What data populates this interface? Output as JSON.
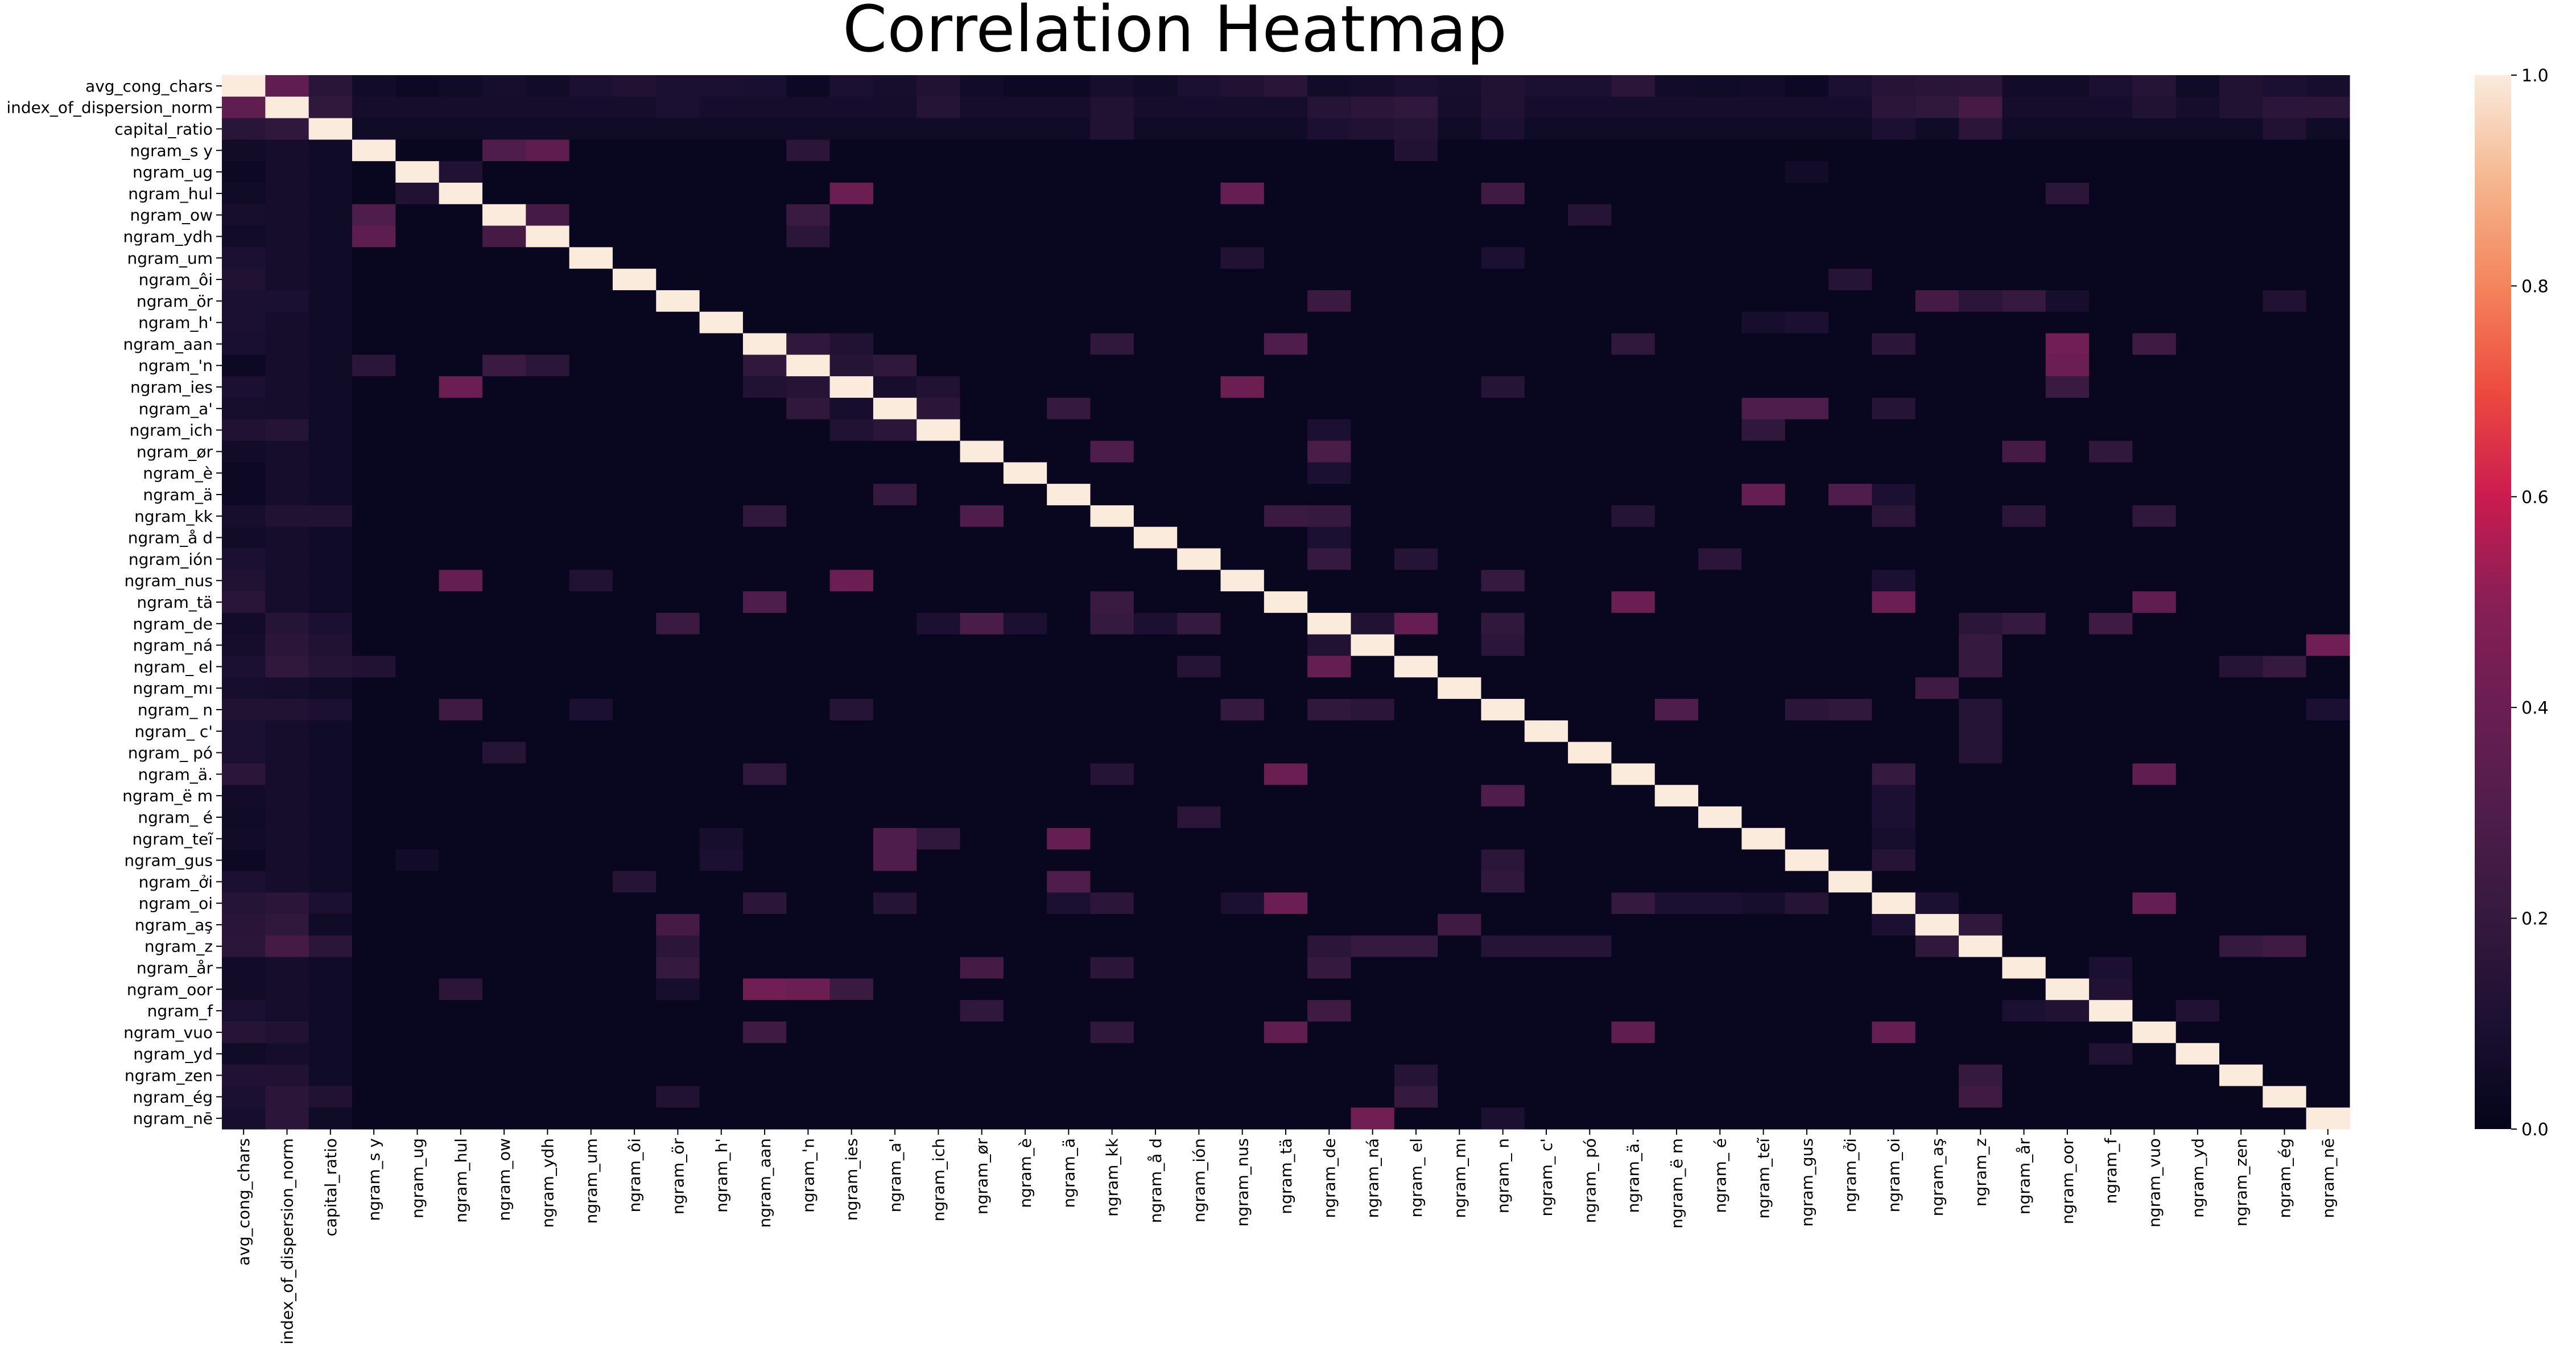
{
  "chart_data": {
    "type": "heatmap",
    "title": "Correlation Heatmap",
    "labels": [
      "avg_cong_chars",
      "index_of_dispersion_norm",
      "capital_ratio",
      "ngram_s y",
      "ngram_ug",
      "ngram_hul",
      "ngram_ow",
      "ngram_ydh",
      "ngram_um",
      "ngram_ôi",
      "ngram_ör",
      "ngram_h'",
      "ngram_aan",
      "ngram_'n",
      "ngram_ies",
      "ngram_a'",
      "ngram_ich",
      "ngram_ør",
      "ngram_è",
      "ngram_ä",
      "ngram_kk",
      "ngram_å d",
      "ngram_ión",
      "ngram_nus",
      "ngram_tä",
      "ngram_de",
      "ngram_ná",
      "ngram_ el",
      "ngram_mı",
      "ngram_ n",
      "ngram_ c'",
      "ngram_ pó",
      "ngram_ä.",
      "ngram_ë m",
      "ngram_ é",
      "ngram_teĩ",
      "ngram_gus",
      "ngram_ởi",
      "ngram_oi",
      "ngram_aş",
      "ngram_z",
      "ngram_år",
      "ngram_oor",
      "ngram_f",
      "ngram_vuo",
      "ngram_yd",
      "ngram_zen",
      "ngram_ég",
      "ngram_nē"
    ],
    "pairs": [
      [
        0,
        1,
        0.36
      ],
      [
        0,
        2,
        0.15
      ],
      [
        0,
        3,
        0.06
      ],
      [
        0,
        4,
        0.04
      ],
      [
        0,
        5,
        0.05
      ],
      [
        0,
        6,
        0.08
      ],
      [
        0,
        7,
        0.06
      ],
      [
        0,
        8,
        0.1
      ],
      [
        0,
        9,
        0.12
      ],
      [
        0,
        10,
        0.1
      ],
      [
        0,
        11,
        0.1
      ],
      [
        0,
        12,
        0.09
      ],
      [
        0,
        13,
        0.04
      ],
      [
        0,
        14,
        0.1
      ],
      [
        0,
        15,
        0.08
      ],
      [
        0,
        16,
        0.12
      ],
      [
        0,
        17,
        0.06
      ],
      [
        0,
        18,
        0.04
      ],
      [
        0,
        19,
        0.04
      ],
      [
        0,
        20,
        0.08
      ],
      [
        0,
        21,
        0.06
      ],
      [
        0,
        22,
        0.1
      ],
      [
        0,
        23,
        0.12
      ],
      [
        0,
        24,
        0.15
      ],
      [
        0,
        25,
        0.06
      ],
      [
        0,
        26,
        0.07
      ],
      [
        0,
        27,
        0.1
      ],
      [
        0,
        28,
        0.08
      ],
      [
        0,
        29,
        0.12
      ],
      [
        0,
        30,
        0.1
      ],
      [
        0,
        31,
        0.1
      ],
      [
        0,
        32,
        0.16
      ],
      [
        0,
        33,
        0.06
      ],
      [
        0,
        34,
        0.05
      ],
      [
        0,
        35,
        0.06
      ],
      [
        0,
        36,
        0.04
      ],
      [
        0,
        37,
        0.1
      ],
      [
        0,
        38,
        0.14
      ],
      [
        0,
        39,
        0.15
      ],
      [
        0,
        40,
        0.16
      ],
      [
        0,
        41,
        0.06
      ],
      [
        0,
        42,
        0.06
      ],
      [
        0,
        43,
        0.1
      ],
      [
        0,
        44,
        0.14
      ],
      [
        0,
        45,
        0.05
      ],
      [
        0,
        46,
        0.12
      ],
      [
        0,
        47,
        0.1
      ],
      [
        0,
        48,
        0.08
      ],
      [
        1,
        2,
        0.18
      ],
      [
        1,
        10,
        0.1
      ],
      [
        1,
        16,
        0.14
      ],
      [
        1,
        20,
        0.12
      ],
      [
        1,
        25,
        0.14
      ],
      [
        1,
        26,
        0.16
      ],
      [
        1,
        27,
        0.18
      ],
      [
        1,
        29,
        0.12
      ],
      [
        1,
        38,
        0.16
      ],
      [
        1,
        39,
        0.18
      ],
      [
        1,
        40,
        0.26
      ],
      [
        1,
        44,
        0.12
      ],
      [
        1,
        46,
        0.12
      ],
      [
        1,
        47,
        0.16
      ],
      [
        1,
        48,
        0.16
      ],
      [
        2,
        20,
        0.12
      ],
      [
        2,
        25,
        0.1
      ],
      [
        2,
        26,
        0.12
      ],
      [
        2,
        27,
        0.14
      ],
      [
        2,
        29,
        0.1
      ],
      [
        2,
        38,
        0.1
      ],
      [
        2,
        40,
        0.16
      ],
      [
        2,
        47,
        0.12
      ],
      [
        3,
        6,
        0.3
      ],
      [
        3,
        7,
        0.35
      ],
      [
        3,
        13,
        0.16
      ],
      [
        3,
        27,
        0.12
      ],
      [
        4,
        5,
        0.12
      ],
      [
        4,
        36,
        0.06
      ],
      [
        5,
        14,
        0.4
      ],
      [
        5,
        23,
        0.38
      ],
      [
        5,
        29,
        0.24
      ],
      [
        5,
        42,
        0.16
      ],
      [
        6,
        7,
        0.26
      ],
      [
        6,
        13,
        0.22
      ],
      [
        6,
        31,
        0.14
      ],
      [
        7,
        13,
        0.16
      ],
      [
        8,
        23,
        0.12
      ],
      [
        8,
        29,
        0.1
      ],
      [
        9,
        37,
        0.14
      ],
      [
        10,
        25,
        0.22
      ],
      [
        10,
        39,
        0.26
      ],
      [
        10,
        40,
        0.16
      ],
      [
        10,
        41,
        0.2
      ],
      [
        10,
        42,
        0.08
      ],
      [
        10,
        47,
        0.12
      ],
      [
        11,
        35,
        0.08
      ],
      [
        11,
        36,
        0.1
      ],
      [
        12,
        13,
        0.18
      ],
      [
        12,
        14,
        0.12
      ],
      [
        12,
        20,
        0.18
      ],
      [
        12,
        24,
        0.3
      ],
      [
        12,
        32,
        0.18
      ],
      [
        12,
        38,
        0.16
      ],
      [
        12,
        42,
        0.42
      ],
      [
        12,
        44,
        0.24
      ],
      [
        13,
        14,
        0.14
      ],
      [
        13,
        15,
        0.18
      ],
      [
        13,
        42,
        0.4
      ],
      [
        14,
        15,
        0.08
      ],
      [
        14,
        16,
        0.12
      ],
      [
        14,
        23,
        0.4
      ],
      [
        14,
        29,
        0.14
      ],
      [
        14,
        42,
        0.22
      ],
      [
        15,
        16,
        0.16
      ],
      [
        15,
        19,
        0.2
      ],
      [
        15,
        35,
        0.3
      ],
      [
        15,
        36,
        0.3
      ],
      [
        15,
        38,
        0.14
      ],
      [
        16,
        25,
        0.1
      ],
      [
        16,
        35,
        0.18
      ],
      [
        17,
        20,
        0.3
      ],
      [
        17,
        25,
        0.28
      ],
      [
        17,
        41,
        0.26
      ],
      [
        17,
        43,
        0.18
      ],
      [
        18,
        25,
        0.1
      ],
      [
        19,
        35,
        0.38
      ],
      [
        19,
        37,
        0.3
      ],
      [
        19,
        38,
        0.1
      ],
      [
        20,
        24,
        0.22
      ],
      [
        20,
        25,
        0.2
      ],
      [
        20,
        32,
        0.14
      ],
      [
        20,
        38,
        0.16
      ],
      [
        20,
        41,
        0.16
      ],
      [
        20,
        44,
        0.18
      ],
      [
        21,
        25,
        0.1
      ],
      [
        22,
        25,
        0.2
      ],
      [
        22,
        27,
        0.14
      ],
      [
        22,
        34,
        0.16
      ],
      [
        23,
        29,
        0.2
      ],
      [
        23,
        38,
        0.1
      ],
      [
        24,
        32,
        0.4
      ],
      [
        24,
        38,
        0.4
      ],
      [
        24,
        44,
        0.36
      ],
      [
        25,
        26,
        0.12
      ],
      [
        25,
        27,
        0.38
      ],
      [
        25,
        29,
        0.18
      ],
      [
        25,
        40,
        0.16
      ],
      [
        25,
        41,
        0.2
      ],
      [
        25,
        43,
        0.24
      ],
      [
        26,
        29,
        0.16
      ],
      [
        26,
        40,
        0.2
      ],
      [
        26,
        48,
        0.42
      ],
      [
        27,
        40,
        0.2
      ],
      [
        27,
        46,
        0.14
      ],
      [
        27,
        47,
        0.2
      ],
      [
        28,
        39,
        0.24
      ],
      [
        29,
        33,
        0.3
      ],
      [
        29,
        36,
        0.16
      ],
      [
        29,
        37,
        0.18
      ],
      [
        29,
        40,
        0.14
      ],
      [
        29,
        48,
        0.1
      ],
      [
        30,
        40,
        0.14
      ],
      [
        31,
        40,
        0.14
      ],
      [
        32,
        38,
        0.2
      ],
      [
        32,
        44,
        0.36
      ],
      [
        33,
        38,
        0.1
      ],
      [
        34,
        38,
        0.1
      ],
      [
        35,
        38,
        0.08
      ],
      [
        36,
        38,
        0.14
      ],
      [
        38,
        39,
        0.1
      ],
      [
        38,
        44,
        0.38
      ],
      [
        39,
        40,
        0.18
      ],
      [
        40,
        47,
        0.24
      ],
      [
        40,
        46,
        0.2
      ],
      [
        41,
        43,
        0.1
      ],
      [
        42,
        43,
        0.12
      ],
      [
        43,
        45,
        0.12
      ]
    ],
    "base_value": 0.02,
    "colorbar": {
      "min": 0.0,
      "max": 1.0,
      "ticks": [
        "0.0",
        "0.2",
        "0.4",
        "0.6",
        "0.8",
        "1.0"
      ]
    }
  }
}
